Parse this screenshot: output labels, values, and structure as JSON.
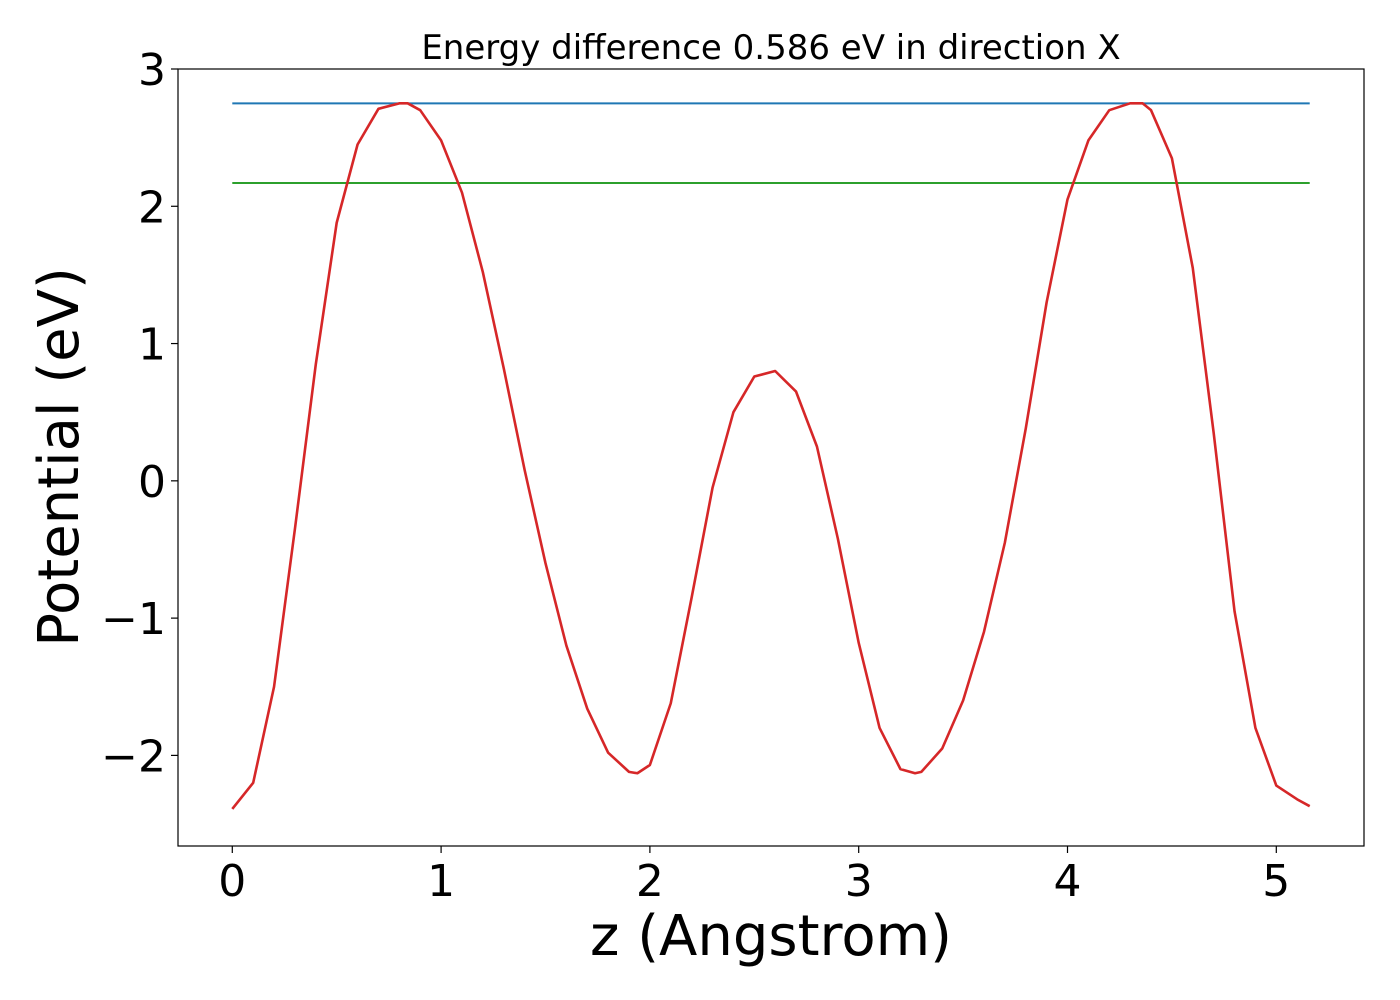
{
  "chart_data": {
    "type": "line",
    "title": "Energy difference 0.586 eV in direction X",
    "xlabel": "z (Angstrom)",
    "ylabel": "Potential (eV)",
    "xlim": [
      -0.26,
      5.42
    ],
    "ylim": [
      -2.66,
      3.0
    ],
    "xticks": [
      0,
      1,
      2,
      3,
      4,
      5
    ],
    "xtick_labels": [
      "0",
      "1",
      "2",
      "3",
      "4",
      "5"
    ],
    "yticks": [
      -2,
      -1,
      0,
      1,
      2,
      3
    ],
    "ytick_labels": [
      "−2",
      "−1",
      "0",
      "1",
      "2",
      "3"
    ],
    "grid": false,
    "series": [
      {
        "color": "#1f77b4",
        "x": [
          0.0,
          5.16
        ],
        "y": [
          2.75,
          2.75
        ]
      },
      {
        "color": "#2ca02c",
        "x": [
          0.0,
          5.16
        ],
        "y": [
          2.17,
          2.17
        ]
      },
      {
        "color": "#d62728",
        "x": [
          0.0,
          0.1,
          0.2,
          0.3,
          0.4,
          0.5,
          0.6,
          0.7,
          0.8,
          0.84,
          0.9,
          1.0,
          1.1,
          1.2,
          1.3,
          1.4,
          1.5,
          1.6,
          1.7,
          1.8,
          1.9,
          1.94,
          2.0,
          2.1,
          2.2,
          2.3,
          2.4,
          2.5,
          2.6,
          2.7,
          2.8,
          2.9,
          3.0,
          3.1,
          3.2,
          3.27,
          3.3,
          3.4,
          3.5,
          3.6,
          3.7,
          3.8,
          3.9,
          4.0,
          4.1,
          4.2,
          4.3,
          4.36,
          4.4,
          4.5,
          4.6,
          4.7,
          4.8,
          4.9,
          5.0,
          5.1,
          5.16
        ],
        "y": [
          -2.39,
          -2.2,
          -1.5,
          -0.35,
          0.85,
          1.88,
          2.45,
          2.71,
          2.75,
          2.75,
          2.7,
          2.48,
          2.1,
          1.52,
          0.82,
          0.08,
          -0.6,
          -1.2,
          -1.66,
          -1.98,
          -2.12,
          -2.13,
          -2.07,
          -1.62,
          -0.85,
          -0.05,
          0.5,
          0.76,
          0.8,
          0.65,
          0.25,
          -0.42,
          -1.18,
          -1.8,
          -2.1,
          -2.13,
          -2.12,
          -1.95,
          -1.6,
          -1.1,
          -0.45,
          0.38,
          1.3,
          2.05,
          2.48,
          2.7,
          2.75,
          2.75,
          2.7,
          2.35,
          1.55,
          0.35,
          -0.95,
          -1.8,
          -2.22,
          -2.32,
          -2.37
        ]
      }
    ]
  }
}
